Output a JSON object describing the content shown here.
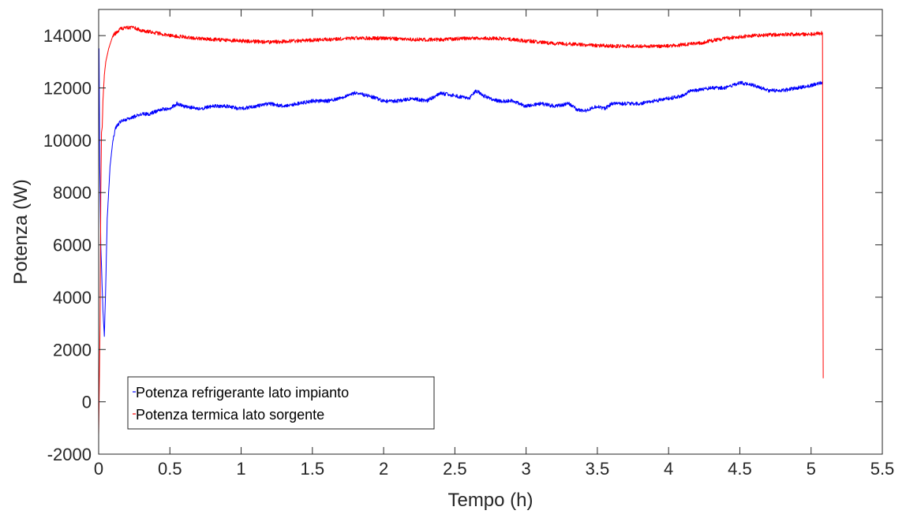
{
  "chart_data": {
    "type": "line",
    "title": "",
    "xlabel": "Tempo (h)",
    "ylabel": "Potenza (W)",
    "xlim": [
      0,
      5.5
    ],
    "ylim": [
      -2000,
      15000
    ],
    "xticks": [
      0,
      0.5,
      1,
      1.5,
      2,
      2.5,
      3,
      3.5,
      4,
      4.5,
      5,
      5.5
    ],
    "xtick_labels": [
      "0",
      "0.5",
      "1",
      "1.5",
      "2",
      "2.5",
      "3",
      "3.5",
      "4",
      "4.5",
      "5",
      "5.5"
    ],
    "yticks": [
      -2000,
      0,
      2000,
      4000,
      6000,
      8000,
      10000,
      12000,
      14000
    ],
    "ytick_labels": [
      "-2000",
      "0",
      "2000",
      "4000",
      "6000",
      "8000",
      "10000",
      "12000",
      "14000"
    ],
    "grid": false,
    "legend_position": "bottom-left",
    "series": [
      {
        "name": "Potenza refrigerante lato impianto",
        "color": "#0000ff",
        "x": [
          0,
          0.003,
          0.008,
          0.015,
          0.022,
          0.03,
          0.04,
          0.05,
          0.06,
          0.07,
          0.08,
          0.1,
          0.12,
          0.15,
          0.2,
          0.25,
          0.3,
          0.35,
          0.4,
          0.45,
          0.5,
          0.55,
          0.6,
          0.7,
          0.8,
          0.9,
          1.0,
          1.1,
          1.2,
          1.3,
          1.4,
          1.5,
          1.6,
          1.7,
          1.8,
          1.9,
          2.0,
          2.1,
          2.2,
          2.3,
          2.4,
          2.5,
          2.6,
          2.65,
          2.7,
          2.8,
          2.9,
          3.0,
          3.1,
          3.2,
          3.3,
          3.35,
          3.4,
          3.5,
          3.55,
          3.6,
          3.7,
          3.8,
          3.9,
          4.0,
          4.1,
          4.15,
          4.2,
          4.3,
          4.4,
          4.5,
          4.6,
          4.7,
          4.8,
          4.9,
          5.0,
          5.08
        ],
        "y": [
          12000,
          13500,
          9000,
          6000,
          4800,
          3500,
          2500,
          4500,
          7000,
          8000,
          9000,
          10000,
          10500,
          10700,
          10800,
          10900,
          11000,
          11000,
          11100,
          11200,
          11200,
          11400,
          11300,
          11200,
          11300,
          11300,
          11200,
          11300,
          11400,
          11300,
          11400,
          11500,
          11500,
          11600,
          11800,
          11700,
          11500,
          11500,
          11600,
          11500,
          11800,
          11700,
          11600,
          11900,
          11700,
          11500,
          11500,
          11300,
          11400,
          11300,
          11400,
          11200,
          11100,
          11300,
          11200,
          11400,
          11400,
          11400,
          11500,
          11600,
          11700,
          11900,
          11900,
          12000,
          12000,
          12200,
          12100,
          11900,
          11900,
          12000,
          12100,
          12200
        ]
      },
      {
        "name": "Potenza termica lato sorgente",
        "color": "#ff0000",
        "x": [
          0,
          0.005,
          0.01,
          0.015,
          0.02,
          0.025,
          0.03,
          0.04,
          0.05,
          0.07,
          0.1,
          0.15,
          0.2,
          0.25,
          0.3,
          0.4,
          0.5,
          0.6,
          0.8,
          1.0,
          1.2,
          1.4,
          1.6,
          1.8,
          2.0,
          2.2,
          2.4,
          2.6,
          2.8,
          3.0,
          3.2,
          3.4,
          3.6,
          3.8,
          4.0,
          4.2,
          4.4,
          4.6,
          4.8,
          5.0,
          5.08,
          5.085
        ],
        "y": [
          -1300,
          800,
          3000,
          8000,
          10300,
          10500,
          11500,
          12500,
          13000,
          13500,
          14000,
          14250,
          14300,
          14300,
          14200,
          14100,
          14000,
          13950,
          13850,
          13800,
          13750,
          13800,
          13850,
          13900,
          13900,
          13850,
          13850,
          13900,
          13900,
          13800,
          13700,
          13650,
          13600,
          13600,
          13600,
          13700,
          13900,
          14000,
          14050,
          14050,
          14100,
          900
        ]
      }
    ]
  }
}
